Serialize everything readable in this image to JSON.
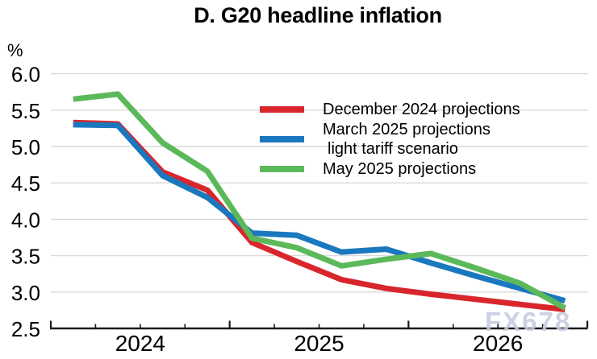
{
  "header": {
    "title": "D. G20 headline inflation",
    "y_axis_unit": "%"
  },
  "watermark": "FX678",
  "legend": {
    "items": [
      {
        "label": "December 2024 projections",
        "color": "#d8262c"
      },
      {
        "label": "March 2025 projections",
        "label2": "light tariff scenario",
        "color": "#1a78be"
      },
      {
        "label": "May 2025 projections",
        "color": "#5cb95a"
      }
    ]
  },
  "chart_data": {
    "type": "line",
    "title": "D. G20 headline inflation",
    "ylabel": "%",
    "ylim": [
      2.5,
      6.0
    ],
    "yticks": [
      "2.5",
      "3.0",
      "3.5",
      "4.0",
      "4.5",
      "5.0",
      "5.5",
      "6.0"
    ],
    "grid": "horizontal-light",
    "x_unit": "quarter",
    "categories": [
      "2024Q1",
      "2024Q2",
      "2024Q3",
      "2024Q4",
      "2025Q1",
      "2025Q2",
      "2025Q3",
      "2025Q4",
      "2026Q1",
      "2026Q2",
      "2026Q3",
      "2026Q4"
    ],
    "year_labels": [
      "2024",
      "2025",
      "2026"
    ],
    "legend_position": "inside-top-right",
    "axis_color": "#1a1a1a",
    "gridline_color": "#d9d9d9",
    "series": [
      {
        "name": "December 2024 projections",
        "color": "#d8262c",
        "values": [
          5.33,
          5.31,
          4.65,
          4.4,
          3.68,
          3.42,
          3.17,
          3.05,
          2.97,
          2.9,
          2.83,
          2.76
        ]
      },
      {
        "name": "March 2025 projections light tariff scenario",
        "color": "#1a78be",
        "values": [
          5.3,
          5.29,
          4.6,
          4.3,
          3.81,
          3.78,
          3.55,
          3.59,
          3.4,
          3.22,
          3.05,
          2.88
        ]
      },
      {
        "name": "May 2025 projections",
        "color": "#5cb95a",
        "values": [
          5.65,
          5.72,
          5.05,
          4.66,
          3.74,
          3.61,
          3.36,
          3.45,
          3.53,
          3.33,
          3.12,
          2.78
        ]
      }
    ]
  }
}
